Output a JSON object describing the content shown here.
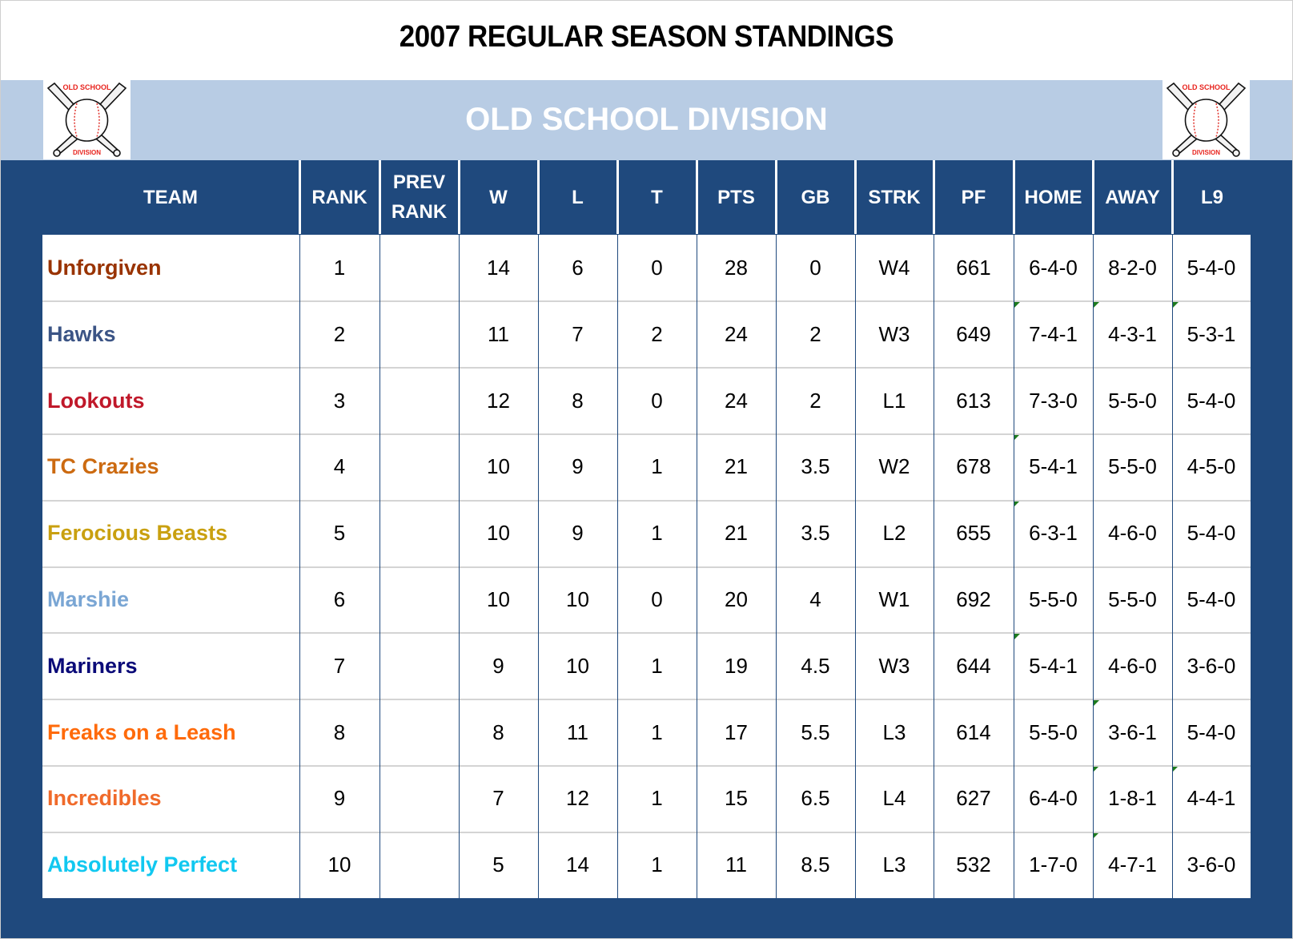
{
  "title": "2007 REGULAR SEASON STANDINGS",
  "division": {
    "name": "OLD SCHOOL DIVISION",
    "logo_top_text": "OLD SCHOOL",
    "logo_bottom_text": "DIVISION",
    "logo_icon": "crossed-bats-baseball-icon"
  },
  "colors": {
    "navy": "#1f497d",
    "light_blue": "#b8cce4",
    "note_marker": "#1e7b1e"
  },
  "columns": [
    "TEAM",
    "RANK",
    "PREV RANK",
    "W",
    "L",
    "T",
    "PTS",
    "GB",
    "STRK",
    "PF",
    "HOME",
    "AWAY",
    "L9"
  ],
  "columns_display": {
    "team": "TEAM",
    "rank": "RANK",
    "prev_rank_1": "PREV",
    "prev_rank_2": "RANK",
    "w": "W",
    "l": "L",
    "t": "T",
    "pts": "PTS",
    "gb": "GB",
    "strk": "STRK",
    "pf": "PF",
    "home": "HOME",
    "away": "AWAY",
    "l9": "L9"
  },
  "rows": [
    {
      "team": "Unforgiven",
      "color": "#993300",
      "rank": "1",
      "prev_rank": "",
      "w": "14",
      "l": "6",
      "t": "0",
      "pts": "28",
      "gb": "0",
      "strk": "W4",
      "pf": "661",
      "home": "6-4-0",
      "away": "8-2-0",
      "l9": "5-4-0",
      "markers": {
        "home": false,
        "away": false,
        "l9": false
      }
    },
    {
      "team": "Hawks",
      "color": "#3b5485",
      "rank": "2",
      "prev_rank": "",
      "w": "11",
      "l": "7",
      "t": "2",
      "pts": "24",
      "gb": "2",
      "strk": "W3",
      "pf": "649",
      "home": "7-4-1",
      "away": "4-3-1",
      "l9": "5-3-1",
      "markers": {
        "home": true,
        "away": true,
        "l9": true
      }
    },
    {
      "team": "Lookouts",
      "color": "#c0182a",
      "rank": "3",
      "prev_rank": "",
      "w": "12",
      "l": "8",
      "t": "0",
      "pts": "24",
      "gb": "2",
      "strk": "L1",
      "pf": "613",
      "home": "7-3-0",
      "away": "5-5-0",
      "l9": "5-4-0",
      "markers": {
        "home": false,
        "away": false,
        "l9": false
      }
    },
    {
      "team": "TC Crazies",
      "color": "#cc6a10",
      "rank": "4",
      "prev_rank": "",
      "w": "10",
      "l": "9",
      "t": "1",
      "pts": "21",
      "gb": "3.5",
      "strk": "W2",
      "pf": "678",
      "home": "5-4-1",
      "away": "5-5-0",
      "l9": "4-5-0",
      "markers": {
        "home": true,
        "away": false,
        "l9": false
      }
    },
    {
      "team": "Ferocious Beasts",
      "color": "#c9a010",
      "rank": "5",
      "prev_rank": "",
      "w": "10",
      "l": "9",
      "t": "1",
      "pts": "21",
      "gb": "3.5",
      "strk": "L2",
      "pf": "655",
      "home": "6-3-1",
      "away": "4-6-0",
      "l9": "5-4-0",
      "markers": {
        "home": true,
        "away": false,
        "l9": false
      }
    },
    {
      "team": "Marshie",
      "color": "#7aa6d4",
      "rank": "6",
      "prev_rank": "",
      "w": "10",
      "l": "10",
      "t": "0",
      "pts": "20",
      "gb": "4",
      "strk": "W1",
      "pf": "692",
      "home": "5-5-0",
      "away": "5-5-0",
      "l9": "5-4-0",
      "markers": {
        "home": false,
        "away": false,
        "l9": false
      }
    },
    {
      "team": "Mariners",
      "color": "#0a0a78",
      "rank": "7",
      "prev_rank": "",
      "w": "9",
      "l": "10",
      "t": "1",
      "pts": "19",
      "gb": "4.5",
      "strk": "W3",
      "pf": "644",
      "home": "5-4-1",
      "away": "4-6-0",
      "l9": "3-6-0",
      "markers": {
        "home": true,
        "away": false,
        "l9": false
      }
    },
    {
      "team": "Freaks on a Leash",
      "color": "#ff6a0a",
      "rank": "8",
      "prev_rank": "",
      "w": "8",
      "l": "11",
      "t": "1",
      "pts": "17",
      "gb": "5.5",
      "strk": "L3",
      "pf": "614",
      "home": "5-5-0",
      "away": "3-6-1",
      "l9": "5-4-0",
      "markers": {
        "home": false,
        "away": true,
        "l9": false
      }
    },
    {
      "team": "Incredibles",
      "color": "#f06a2a",
      "rank": "9",
      "prev_rank": "",
      "w": "7",
      "l": "12",
      "t": "1",
      "pts": "15",
      "gb": "6.5",
      "strk": "L4",
      "pf": "627",
      "home": "6-4-0",
      "away": "1-8-1",
      "l9": "4-4-1",
      "markers": {
        "home": false,
        "away": true,
        "l9": true
      }
    },
    {
      "team": "Absolutely Perfect",
      "color": "#11c8f0",
      "rank": "10",
      "prev_rank": "",
      "w": "5",
      "l": "14",
      "t": "1",
      "pts": "11",
      "gb": "8.5",
      "strk": "L3",
      "pf": "532",
      "home": "1-7-0",
      "away": "4-7-1",
      "l9": "3-6-0",
      "markers": {
        "home": false,
        "away": true,
        "l9": false
      }
    }
  ]
}
